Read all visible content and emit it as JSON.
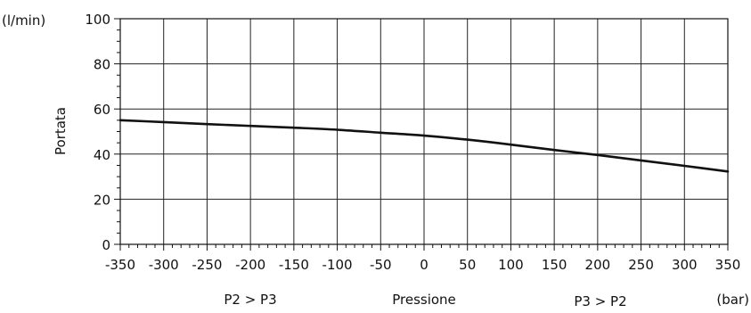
{
  "chart_data": {
    "type": "line",
    "ylabel": "Portata",
    "yunit": "(l/min)",
    "xunit": "(bar)",
    "xlabel": "Pressione",
    "region_labels": {
      "left": "P2 > P3",
      "right": "P3 > P2"
    },
    "xlim": [
      -350,
      350
    ],
    "ylim": [
      0,
      100
    ],
    "x_ticks": [
      -350,
      -300,
      -250,
      -200,
      -150,
      -100,
      -50,
      0,
      50,
      100,
      150,
      200,
      250,
      300,
      350
    ],
    "y_ticks": [
      0,
      20,
      40,
      60,
      80,
      100
    ],
    "grid": true,
    "series": [
      {
        "x": [
          -350,
          -300,
          -250,
          -200,
          -150,
          -100,
          -50,
          0,
          50,
          100,
          150,
          200,
          250,
          300,
          350
        ],
        "y": [
          55,
          54.2,
          53.3,
          52.5,
          51.7,
          50.8,
          49.5,
          48.2,
          46.4,
          44.2,
          41.8,
          39.6,
          37.2,
          34.8,
          32.3
        ]
      }
    ]
  }
}
